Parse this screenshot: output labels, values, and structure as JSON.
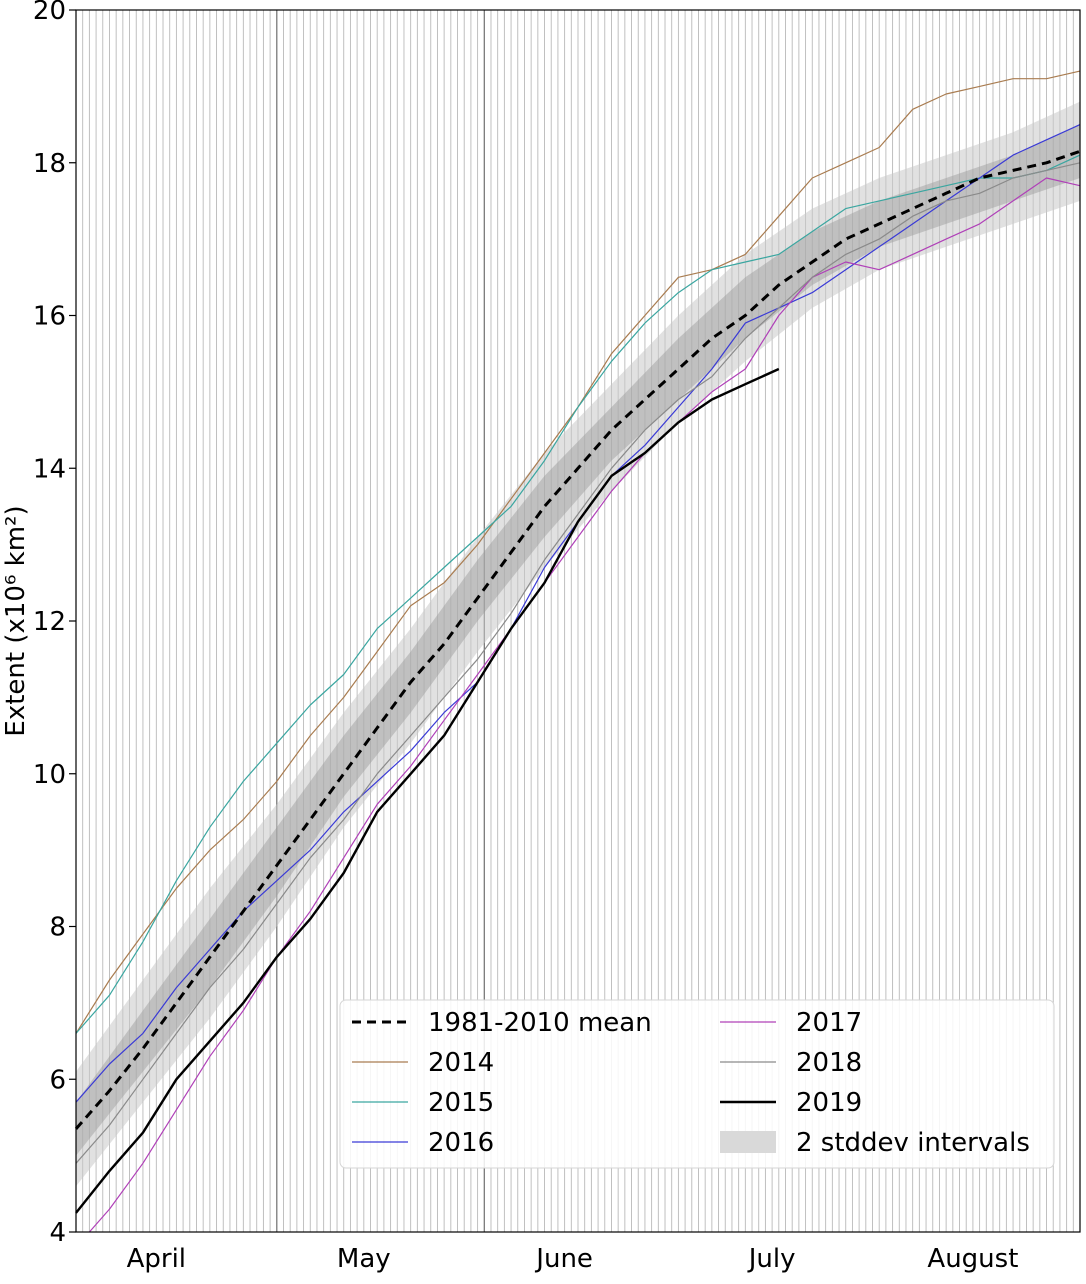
{
  "chart_data": {
    "type": "line",
    "title": "",
    "xlabel": "",
    "ylabel": "Extent (x10⁶ km²)",
    "ylim": [
      4,
      20
    ],
    "xlim_days": [
      0,
      150
    ],
    "yticks": [
      4,
      6,
      8,
      10,
      12,
      14,
      16,
      18,
      20
    ],
    "month_labels": [
      {
        "label": "April",
        "day": 12
      },
      {
        "label": "May",
        "day": 43
      },
      {
        "label": "June",
        "day": 73
      },
      {
        "label": "July",
        "day": 104
      },
      {
        "label": "August",
        "day": 134
      }
    ],
    "month_boundaries_days": [
      30,
      61
    ],
    "grid": "vertical daily lines",
    "legend": {
      "placement": "lower-right",
      "columns": 2,
      "entries": [
        {
          "label": "1981-2010 mean",
          "color": "#000000",
          "style": "dashed"
        },
        {
          "label": "2014",
          "color": "#a97c50",
          "style": "solid"
        },
        {
          "label": "2015",
          "color": "#3aa6a0",
          "style": "solid"
        },
        {
          "label": "2016",
          "color": "#3a3ad6",
          "style": "solid"
        },
        {
          "label": "2017",
          "color": "#b040b8",
          "style": "solid"
        },
        {
          "label": "2018",
          "color": "#8a8a8a",
          "style": "solid"
        },
        {
          "label": "2019",
          "color": "#000000",
          "style": "solid-thick"
        },
        {
          "label": "2 stddev intervals",
          "color": "#d9d9d9",
          "style": "band"
        }
      ]
    },
    "bands": [
      {
        "name": "2 stddev intervals",
        "outer": true,
        "x": [
          0,
          10,
          20,
          30,
          40,
          50,
          60,
          70,
          80,
          90,
          100,
          110,
          120,
          130,
          140,
          150
        ],
        "lower": [
          4.6,
          5.7,
          6.8,
          8.0,
          9.3,
          10.4,
          11.6,
          12.7,
          13.7,
          14.6,
          15.4,
          16.1,
          16.6,
          16.9,
          17.2,
          17.5
        ],
        "upper": [
          6.1,
          7.3,
          8.5,
          9.6,
          10.8,
          11.9,
          13.1,
          14.2,
          15.1,
          16.0,
          16.8,
          17.4,
          17.8,
          18.1,
          18.4,
          18.8
        ]
      },
      {
        "name": "1 stddev",
        "outer": false,
        "x": [
          0,
          10,
          20,
          30,
          40,
          50,
          60,
          70,
          80,
          90,
          100,
          110,
          120,
          130,
          140,
          150
        ],
        "lower": [
          5.0,
          6.1,
          7.2,
          8.4,
          9.7,
          10.8,
          12.0,
          13.1,
          14.1,
          14.9,
          15.7,
          16.4,
          16.9,
          17.2,
          17.5,
          17.8
        ],
        "upper": [
          5.7,
          6.9,
          8.1,
          9.3,
          10.5,
          11.6,
          12.8,
          13.9,
          14.8,
          15.7,
          16.5,
          17.1,
          17.5,
          17.8,
          18.1,
          18.5
        ]
      }
    ],
    "series": [
      {
        "name": "2014",
        "color": "#a97c50",
        "width": 1.2,
        "dash": "",
        "x": [
          0,
          5,
          10,
          15,
          20,
          25,
          30,
          35,
          40,
          45,
          50,
          55,
          60,
          65,
          70,
          75,
          80,
          85,
          90,
          95,
          100,
          105,
          110,
          115,
          120,
          125,
          130,
          135,
          140,
          145,
          150
        ],
        "y": [
          6.6,
          7.3,
          7.9,
          8.5,
          9.0,
          9.4,
          9.9,
          10.5,
          11.0,
          11.6,
          12.2,
          12.5,
          13.0,
          13.6,
          14.2,
          14.8,
          15.5,
          16.0,
          16.5,
          16.6,
          16.8,
          17.3,
          17.8,
          18.0,
          18.2,
          18.7,
          18.9,
          19.0,
          19.1,
          19.1,
          19.2
        ]
      },
      {
        "name": "2015",
        "color": "#3aa6a0",
        "width": 1.2,
        "dash": "",
        "x": [
          0,
          5,
          10,
          15,
          20,
          25,
          30,
          35,
          40,
          45,
          50,
          55,
          60,
          65,
          70,
          75,
          80,
          85,
          90,
          95,
          100,
          105,
          110,
          115,
          120,
          125,
          130,
          135,
          140,
          145,
          150
        ],
        "y": [
          6.6,
          7.1,
          7.8,
          8.6,
          9.3,
          9.9,
          10.4,
          10.9,
          11.3,
          11.9,
          12.3,
          12.7,
          13.1,
          13.5,
          14.1,
          14.8,
          15.4,
          15.9,
          16.3,
          16.6,
          16.7,
          16.8,
          17.1,
          17.4,
          17.5,
          17.6,
          17.7,
          17.8,
          17.8,
          17.9,
          18.1
        ]
      },
      {
        "name": "2016",
        "color": "#3a3ad6",
        "width": 1.2,
        "dash": "",
        "x": [
          0,
          5,
          10,
          15,
          20,
          25,
          30,
          35,
          40,
          45,
          50,
          55,
          60,
          65,
          70,
          75,
          80,
          85,
          90,
          95,
          100,
          105,
          110,
          115,
          120,
          125,
          130,
          135,
          140,
          145,
          150
        ],
        "y": [
          5.7,
          6.2,
          6.6,
          7.2,
          7.7,
          8.2,
          8.6,
          9.0,
          9.5,
          9.9,
          10.3,
          10.8,
          11.2,
          11.9,
          12.7,
          13.3,
          13.9,
          14.3,
          14.8,
          15.3,
          15.9,
          16.1,
          16.3,
          16.6,
          16.9,
          17.2,
          17.5,
          17.8,
          18.1,
          18.3,
          18.5
        ]
      },
      {
        "name": "2017",
        "color": "#b040b8",
        "width": 1.2,
        "dash": "",
        "x": [
          2,
          5,
          10,
          15,
          20,
          25,
          30,
          35,
          40,
          45,
          50,
          55,
          60,
          65,
          70,
          75,
          80,
          85,
          90,
          95,
          100,
          105,
          110,
          115,
          120,
          125,
          130,
          135,
          140,
          145,
          150
        ],
        "y": [
          4.0,
          4.3,
          4.9,
          5.6,
          6.3,
          6.9,
          7.6,
          8.2,
          8.9,
          9.6,
          10.1,
          10.7,
          11.3,
          11.9,
          12.5,
          13.1,
          13.7,
          14.2,
          14.6,
          15.0,
          15.3,
          16.0,
          16.5,
          16.7,
          16.6,
          16.8,
          17.0,
          17.2,
          17.5,
          17.8,
          17.7
        ]
      },
      {
        "name": "2018",
        "color": "#8a8a8a",
        "width": 1.2,
        "dash": "",
        "x": [
          0,
          5,
          10,
          15,
          20,
          25,
          30,
          35,
          40,
          45,
          50,
          55,
          60,
          65,
          70,
          75,
          80,
          85,
          90,
          95,
          100,
          105,
          110,
          115,
          120,
          125,
          130,
          135,
          140,
          145,
          150
        ],
        "y": [
          4.9,
          5.4,
          6.0,
          6.6,
          7.2,
          7.7,
          8.3,
          8.9,
          9.4,
          10.0,
          10.5,
          11.0,
          11.5,
          12.1,
          12.8,
          13.4,
          14.0,
          14.5,
          14.9,
          15.2,
          15.7,
          16.1,
          16.5,
          16.8,
          17.0,
          17.3,
          17.5,
          17.6,
          17.8,
          17.9,
          18.0
        ]
      },
      {
        "name": "2019",
        "color": "#000000",
        "width": 2.4,
        "dash": "",
        "x": [
          0,
          5,
          10,
          15,
          20,
          25,
          30,
          35,
          40,
          45,
          50,
          55,
          60,
          65,
          70,
          75,
          80,
          85,
          90,
          95,
          100,
          105
        ],
        "y": [
          4.25,
          4.8,
          5.3,
          6.0,
          6.5,
          7.0,
          7.6,
          8.1,
          8.7,
          9.5,
          10.0,
          10.5,
          11.2,
          11.9,
          12.5,
          13.3,
          13.9,
          14.2,
          14.6,
          14.9,
          15.1,
          15.3
        ]
      },
      {
        "name": "1981-2010 mean",
        "color": "#000000",
        "width": 3,
        "dash": "9,6",
        "x": [
          0,
          5,
          10,
          15,
          20,
          25,
          30,
          35,
          40,
          45,
          50,
          55,
          60,
          65,
          70,
          75,
          80,
          85,
          90,
          95,
          100,
          105,
          110,
          115,
          120,
          125,
          130,
          135,
          140,
          145,
          150
        ],
        "y": [
          5.35,
          5.85,
          6.4,
          7.0,
          7.6,
          8.2,
          8.8,
          9.4,
          10.0,
          10.6,
          11.2,
          11.7,
          12.3,
          12.9,
          13.5,
          14.0,
          14.5,
          14.9,
          15.3,
          15.7,
          16.0,
          16.4,
          16.7,
          17.0,
          17.2,
          17.4,
          17.6,
          17.8,
          17.9,
          18.0,
          18.15
        ]
      }
    ]
  }
}
